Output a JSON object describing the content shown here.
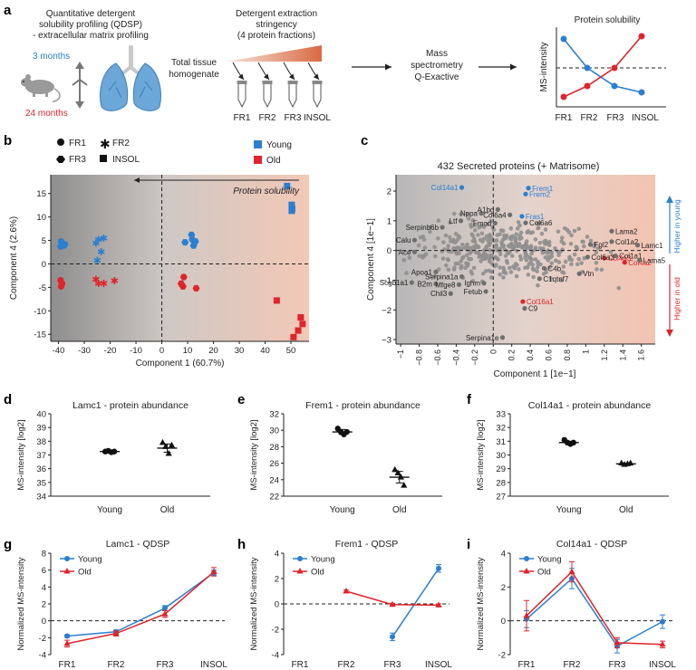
{
  "panel_a": {
    "label": "a",
    "qdsp_line1": "Quantitative detergent",
    "qdsp_line2": "solubility profiling (QDSP)",
    "qdsp_line3": "- extracellular matrix profiling",
    "age_young": "3 months",
    "age_old": "24 months",
    "stringency_line1": "Detergent extraction",
    "stringency_line2": "stringency",
    "stringency_line3": "(4 protein fractions)",
    "homog_line1": "Total tissue",
    "homog_line2": "homogenate",
    "fractions": [
      "FR1",
      "FR2",
      "FR3",
      "INSOL"
    ],
    "ms_line1": "Mass",
    "ms_line2": "spectrometry",
    "ms_line3": "Q-Exactive",
    "schematic_title": "Protein solubility",
    "schematic_ylabel": "MS-intensity",
    "colors": {
      "young": "#2b7fd1",
      "old": "#e0242b"
    }
  },
  "chart_data": [
    {
      "id": "b",
      "type": "scatter",
      "label": "b",
      "xlabel": "Component 1 (60.7%)",
      "ylabel": "Component 4 (2.6%)",
      "xlim": [
        -43,
        57
      ],
      "ylim": [
        -16.5,
        19
      ],
      "xticks": [
        -40,
        -30,
        -20,
        -10,
        0,
        10,
        20,
        30,
        40,
        50
      ],
      "yticks": [
        -15,
        -10,
        -5,
        0,
        5,
        10,
        15
      ],
      "arrow_label": "Protein solubility",
      "legend": {
        "fr1": "FR1",
        "fr2": "FR2",
        "fr3": "FR3",
        "insol": "INSOL",
        "young": "Young",
        "old": "Old"
      },
      "points": [
        {
          "f": "FR1",
          "g": "young",
          "x": -39,
          "y": 4.8
        },
        {
          "f": "FR1",
          "g": "young",
          "x": -37.5,
          "y": 4.2
        },
        {
          "f": "FR1",
          "g": "young",
          "x": -39.2,
          "y": 3.7
        },
        {
          "f": "FR1",
          "g": "young",
          "x": -37.8,
          "y": 3.9
        },
        {
          "f": "FR1",
          "g": "old",
          "x": -39.2,
          "y": -3.5
        },
        {
          "f": "FR1",
          "g": "old",
          "x": -38.6,
          "y": -4.2
        },
        {
          "f": "FR1",
          "g": "old",
          "x": -39,
          "y": -4.8
        },
        {
          "f": "FR2",
          "g": "young",
          "x": -24.5,
          "y": 5.2
        },
        {
          "f": "FR2",
          "g": "young",
          "x": -22.5,
          "y": 5.5
        },
        {
          "f": "FR2",
          "g": "young",
          "x": -25.5,
          "y": 4.4
        },
        {
          "f": "FR2",
          "g": "young",
          "x": -23.5,
          "y": 2.6
        },
        {
          "f": "FR2",
          "g": "young",
          "x": -25,
          "y": 0.8
        },
        {
          "f": "FR2",
          "g": "old",
          "x": -25.5,
          "y": -3.3
        },
        {
          "f": "FR2",
          "g": "old",
          "x": -24.5,
          "y": -4.2
        },
        {
          "f": "FR2",
          "g": "old",
          "x": -22.5,
          "y": -4.2
        },
        {
          "f": "FR2",
          "g": "old",
          "x": -18.3,
          "y": -3.6
        },
        {
          "f": "FR3",
          "g": "young",
          "x": 11.5,
          "y": 6.2
        },
        {
          "f": "FR3",
          "g": "young",
          "x": 11.8,
          "y": 5.2
        },
        {
          "f": "FR3",
          "g": "young",
          "x": 13,
          "y": 4.8
        },
        {
          "f": "FR3",
          "g": "young",
          "x": 9,
          "y": 4.6
        },
        {
          "f": "FR3",
          "g": "young",
          "x": 12.3,
          "y": 3.9
        },
        {
          "f": "FR3",
          "g": "old",
          "x": 8.5,
          "y": -2.8
        },
        {
          "f": "FR3",
          "g": "old",
          "x": 7.5,
          "y": -4.2
        },
        {
          "f": "FR3",
          "g": "old",
          "x": 8.2,
          "y": -4.8
        },
        {
          "f": "FR3",
          "g": "old",
          "x": 13.3,
          "y": -5.2
        },
        {
          "f": "INSOL",
          "g": "young",
          "x": 48.5,
          "y": 16.6
        },
        {
          "f": "INSOL",
          "g": "young",
          "x": 50.3,
          "y": 12.6
        },
        {
          "f": "INSOL",
          "g": "young",
          "x": 50.5,
          "y": 11.7
        },
        {
          "f": "INSOL",
          "g": "young",
          "x": 50.3,
          "y": 11.3
        },
        {
          "f": "INSOL",
          "g": "old",
          "x": 44.5,
          "y": -7.8
        },
        {
          "f": "INSOL",
          "g": "old",
          "x": 53.8,
          "y": -11.4
        },
        {
          "f": "INSOL",
          "g": "old",
          "x": 54.5,
          "y": -12.8
        },
        {
          "f": "INSOL",
          "g": "old",
          "x": 52.8,
          "y": -14.2
        },
        {
          "f": "INSOL",
          "g": "old",
          "x": 51,
          "y": -15.6
        }
      ]
    },
    {
      "id": "c",
      "type": "scatter",
      "label": "c",
      "title": "432 Secreted proteins (+ Matrisome)",
      "xlabel": "Component 1 [1e−1]",
      "ylabel": "Component 4 [1e−1]",
      "xlim": [
        -1.05,
        1.75
      ],
      "ylim": [
        -3.15,
        2.55
      ],
      "xticks": [
        -1,
        -0.8,
        -0.6,
        -0.4,
        -0.2,
        0,
        0.2,
        0.4,
        0.6,
        0.8,
        1,
        1.2,
        1.4,
        1.6
      ],
      "xtick_labels": [
        "−1",
        "−0.8",
        "−0.6",
        "−0.4",
        "−0.2",
        "0",
        "0.2",
        "0.4",
        "0.6",
        "0.8",
        "1",
        "1.2",
        "1.4",
        "1.6"
      ],
      "yticks": [
        -3,
        -2,
        -1,
        0,
        1,
        2
      ],
      "ytick_labels": [
        "−3",
        "−2",
        "−1",
        "0",
        "1",
        "2"
      ],
      "side_up": "Higher in young",
      "side_down": "Higher in old",
      "labeled": [
        {
          "name": "Col14a1",
          "x": -0.34,
          "y": 2.12,
          "c": "young"
        },
        {
          "name": "Frem1",
          "x": 0.38,
          "y": 2.1,
          "c": "young"
        },
        {
          "name": "Frem2",
          "x": 0.35,
          "y": 1.9,
          "c": "young"
        },
        {
          "name": "Fras1",
          "x": 0.31,
          "y": 1.15,
          "c": "young"
        },
        {
          "name": "Col4a3",
          "x": 1.2,
          "y": -0.26,
          "c": "old"
        },
        {
          "name": "Col4a2",
          "x": 1.42,
          "y": -0.4,
          "c": "old"
        },
        {
          "name": "Col16a1",
          "x": 0.32,
          "y": -1.72,
          "c": "old"
        },
        {
          "name": "Ltf",
          "x": -0.35,
          "y": 1.0,
          "c": "grey"
        },
        {
          "name": "Nppa",
          "x": -0.13,
          "y": 1.25,
          "c": "grey"
        },
        {
          "name": "A1bg",
          "x": 0.05,
          "y": 1.38,
          "c": "grey"
        },
        {
          "name": "Col6a4",
          "x": 0.18,
          "y": 1.2,
          "c": "grey"
        },
        {
          "name": "Fmod",
          "x": 0.02,
          "y": 0.92,
          "c": "grey"
        },
        {
          "name": "Col6a6",
          "x": 0.35,
          "y": 0.93,
          "c": "grey"
        },
        {
          "name": "Serpinb6b",
          "x": -0.55,
          "y": 0.78,
          "c": "grey"
        },
        {
          "name": "Calu",
          "x": -0.85,
          "y": 0.35,
          "c": "grey"
        },
        {
          "name": "Ace",
          "x": -0.85,
          "y": -0.05,
          "c": "grey"
        },
        {
          "name": "Lama2",
          "x": 1.28,
          "y": 0.65,
          "c": "grey"
        },
        {
          "name": "Col1a2",
          "x": 1.28,
          "y": 0.3,
          "c": "grey"
        },
        {
          "name": "Lamc1",
          "x": 1.56,
          "y": 0.18,
          "c": "grey"
        },
        {
          "name": "Col1a1",
          "x": 1.32,
          "y": -0.18,
          "c": "grey"
        },
        {
          "name": "Lama5",
          "x": 1.58,
          "y": -0.33,
          "c": "grey"
        },
        {
          "name": "Fgl2",
          "x": 1.05,
          "y": 0.2,
          "c": "grey"
        },
        {
          "name": "Col6a3",
          "x": 1.02,
          "y": -0.22,
          "c": "grey"
        },
        {
          "name": "Vtn",
          "x": 0.93,
          "y": -0.78,
          "c": "grey"
        },
        {
          "name": "C4b",
          "x": 0.55,
          "y": -0.6,
          "c": "grey"
        },
        {
          "name": "C1qtnf7",
          "x": 0.5,
          "y": -0.95,
          "c": "grey"
        },
        {
          "name": "Apoa1",
          "x": -0.62,
          "y": -0.72,
          "c": "grey"
        },
        {
          "name": "Serpina1a",
          "x": -0.34,
          "y": -0.88,
          "c": "grey"
        },
        {
          "name": "Ighm",
          "x": -0.1,
          "y": -1.1,
          "c": "grey"
        },
        {
          "name": "Scgb1a1",
          "x": -0.88,
          "y": -1.08,
          "c": "grey"
        },
        {
          "name": "B2m",
          "x": -0.62,
          "y": -1.12,
          "c": "grey"
        },
        {
          "name": "Mfge8",
          "x": -0.37,
          "y": -1.15,
          "c": "grey"
        },
        {
          "name": "Chil3",
          "x": -0.46,
          "y": -1.45,
          "c": "grey"
        },
        {
          "name": "Fetub",
          "x": -0.08,
          "y": -1.38,
          "c": "grey"
        },
        {
          "name": "C9",
          "x": 0.34,
          "y": -1.95,
          "c": "grey"
        },
        {
          "name": "Serpina1e",
          "x": 0.1,
          "y": -2.93,
          "c": "grey"
        }
      ]
    },
    {
      "id": "d",
      "type": "scatter",
      "label": "d",
      "title": "Lamc1 - protein abundance",
      "ylabel": "MS-intensity [log2]",
      "categories": [
        "Young",
        "Old"
      ],
      "ylim": [
        34,
        40
      ],
      "yticks": [
        34,
        35,
        36,
        37,
        38,
        39,
        40
      ],
      "groups": [
        {
          "g": "Young",
          "values": [
            37.25,
            37.3,
            37.2,
            37.25
          ],
          "mean": 37.25,
          "sem": 0.05
        },
        {
          "g": "Old",
          "values": [
            37.9,
            37.6,
            37.1,
            37.7
          ],
          "mean": 37.5,
          "sem": 0.3
        }
      ]
    },
    {
      "id": "e",
      "type": "scatter",
      "label": "e",
      "title": "Frem1 - protein abundance",
      "ylabel": "MS-intensity [log2]",
      "categories": [
        "Young",
        "Old"
      ],
      "ylim": [
        22,
        32
      ],
      "yticks": [
        22,
        24,
        26,
        28,
        30,
        32
      ],
      "groups": [
        {
          "g": "Young",
          "values": [
            30.2,
            29.8,
            29.5,
            29.8
          ],
          "mean": 29.8,
          "sem": 0.3
        },
        {
          "g": "Old",
          "values": [
            25.2,
            24.8,
            24.3,
            23.3
          ],
          "mean": 24.3,
          "sem": 0.7
        }
      ]
    },
    {
      "id": "f",
      "type": "scatter",
      "label": "f",
      "title": "Col14a1 - protein abundance",
      "ylabel": "MS-intensity [log2]",
      "categories": [
        "Young",
        "Old"
      ],
      "ylim": [
        27,
        33
      ],
      "yticks": [
        27,
        28,
        29,
        30,
        31,
        32,
        33
      ],
      "groups": [
        {
          "g": "Young",
          "values": [
            31.1,
            30.9,
            30.8,
            30.9
          ],
          "mean": 30.9,
          "sem": 0.1
        },
        {
          "g": "Old",
          "values": [
            29.4,
            29.3,
            29.35,
            29.4
          ],
          "mean": 29.35,
          "sem": 0.05
        }
      ]
    },
    {
      "id": "g",
      "type": "line",
      "label": "g",
      "title": "Lamc1 - QDSP",
      "ylabel": "Normalized MS-intensity",
      "categories": [
        "FR1",
        "FR2",
        "FR3",
        "INSOL"
      ],
      "ylim": [
        -4,
        8
      ],
      "yticks": [
        -4,
        -2,
        0,
        2,
        4,
        6,
        8
      ],
      "series": [
        {
          "name": "Young",
          "color": "young",
          "values": [
            -1.8,
            -1.3,
            1.5,
            5.7
          ],
          "err": [
            0.15,
            0.2,
            0.3,
            0.3
          ]
        },
        {
          "name": "Old",
          "color": "old",
          "values": [
            -2.7,
            -1.5,
            0.8,
            5.8
          ],
          "err": [
            0.4,
            0.3,
            0.4,
            0.5
          ]
        }
      ]
    },
    {
      "id": "h",
      "type": "line",
      "label": "h",
      "title": "Frem1 - QDSP",
      "ylabel": "Normalized MS-intensity",
      "categories": [
        "FR1",
        "FR2",
        "FR3",
        "INSOL"
      ],
      "ylim": [
        -4,
        4
      ],
      "yticks": [
        -4,
        -2,
        0,
        2,
        4
      ],
      "series": [
        {
          "name": "Young",
          "color": "young",
          "values": [
            null,
            null,
            -2.6,
            2.8
          ],
          "err": [
            0,
            0,
            0.3,
            0.3
          ]
        },
        {
          "name": "Old",
          "color": "old",
          "values": [
            null,
            1.0,
            -0.05,
            -0.1
          ],
          "err": [
            0,
            0.1,
            0.1,
            0.1
          ]
        }
      ]
    },
    {
      "id": "i",
      "type": "line",
      "label": "i",
      "title": "Col14a1 - QDSP",
      "ylabel": "Normalized MS-intensity",
      "categories": [
        "FR1",
        "FR2",
        "FR3",
        "INSOL"
      ],
      "ylim": [
        -2,
        4
      ],
      "yticks": [
        -2,
        0,
        2,
        4
      ],
      "series": [
        {
          "name": "Young",
          "color": "young",
          "values": [
            0.1,
            2.5,
            -1.5,
            -0.05
          ],
          "err": [
            0.5,
            0.6,
            0.4,
            0.4
          ]
        },
        {
          "name": "Old",
          "color": "old",
          "values": [
            0.3,
            2.9,
            -1.3,
            -1.4
          ],
          "err": [
            0.9,
            0.6,
            0.3,
            0.2
          ]
        }
      ]
    }
  ]
}
